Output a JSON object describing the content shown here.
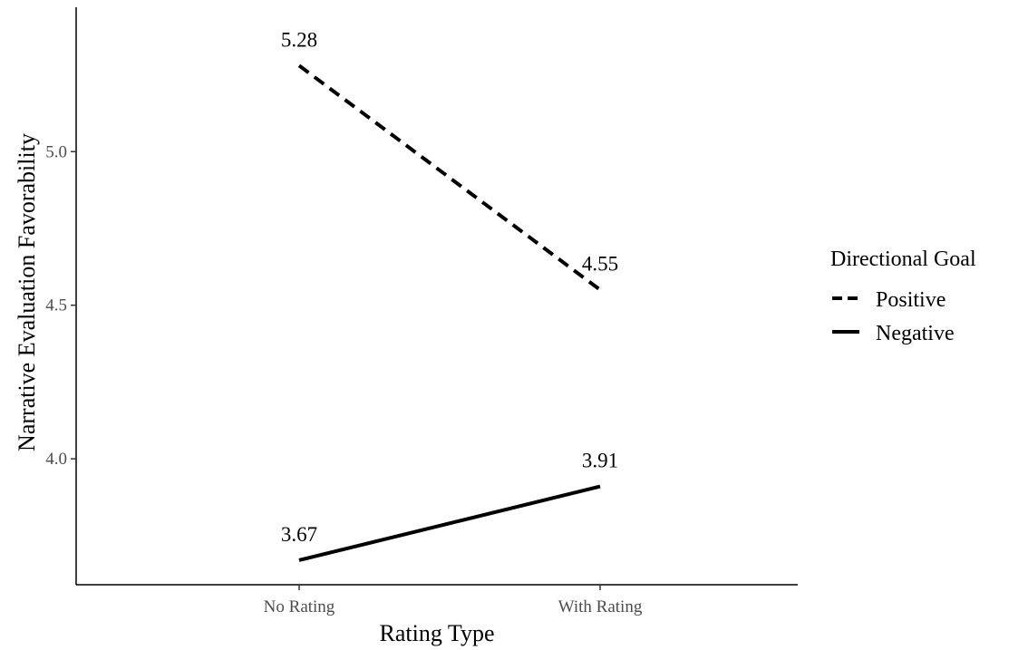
{
  "chart_data": {
    "type": "line",
    "categories": [
      "No Rating",
      "With Rating"
    ],
    "series": [
      {
        "name": "Positive",
        "values": [
          5.28,
          4.55
        ],
        "line_style": "dashed",
        "labels": [
          "5.28",
          "4.55"
        ]
      },
      {
        "name": "Negative",
        "values": [
          3.67,
          3.91
        ],
        "line_style": "solid",
        "labels": [
          "3.67",
          "3.91"
        ]
      }
    ],
    "xlabel": "Rating Type",
    "ylabel": "Narrative Evaluation Favorability",
    "ylim": [
      3.59,
      5.47
    ],
    "yticks": [
      "4.0",
      "4.5",
      "5.0"
    ],
    "ytick_values": [
      4.0,
      4.5,
      5.0
    ],
    "grid": false,
    "legend": {
      "title": "Directional Goal",
      "placement": "right"
    },
    "line_color": "#000000"
  }
}
